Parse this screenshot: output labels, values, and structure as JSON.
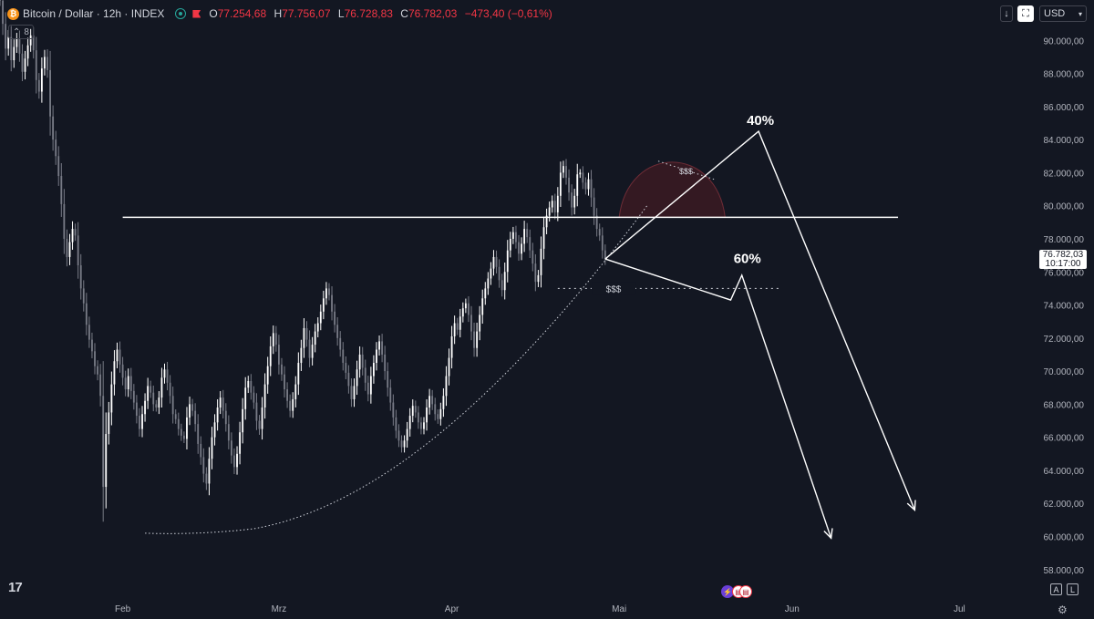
{
  "header": {
    "symbol_title": "Bitcoin / Dollar · 12h · INDEX",
    "btc_glyph": "₿",
    "ohlc": [
      {
        "k": "O",
        "v": "77.254,68"
      },
      {
        "k": "H",
        "v": "77.756,07"
      },
      {
        "k": "L",
        "v": "76.728,83"
      },
      {
        "k": "C",
        "v": "76.782,03"
      }
    ],
    "change": "−473,40 (−0,61%)",
    "volume_count": "8"
  },
  "toolbar": {
    "currency": "USD"
  },
  "price_badge": {
    "price": "76.782,03",
    "countdown": "10:17:00"
  },
  "footer": {
    "auto_label": "A",
    "log_label": "L",
    "logo_text": "17"
  },
  "colors": {
    "background": "#131722",
    "candle_up": "#ffffff",
    "candle_down": "#787b86",
    "annotation": "#ffffff",
    "dome_fill": "#3b1a22",
    "dome_stroke": "#6d2c36",
    "accent_down": "#f23645",
    "accent_up": "#26a69a"
  },
  "chart_data": {
    "type": "candlestick",
    "title": "Bitcoin / Dollar · 12h · INDEX",
    "y_axis": {
      "range": [
        56500,
        92000
      ],
      "ticks": [
        58000,
        60000,
        62000,
        64000,
        66000,
        68000,
        70000,
        72000,
        74000,
        76000,
        78000,
        80000,
        82000,
        84000,
        86000,
        88000,
        90000
      ],
      "tick_labels": [
        "58.000,00",
        "60.000,00",
        "62.000,00",
        "64.000,00",
        "66.000,00",
        "68.000,00",
        "70.000,00",
        "72.000,00",
        "74.000,00",
        "76.000,00",
        "78.000,00",
        "80.000,00",
        "82.000,00",
        "84.000,00",
        "86.000,00",
        "88.000,00",
        "90.000,00"
      ]
    },
    "x_axis": {
      "range": [
        "2025-01-10",
        "2025-07-15"
      ],
      "ticks": [
        "2025-02-01",
        "2025-03-01",
        "2025-04-01",
        "2025-05-01",
        "2025-06-01",
        "2025-07-01"
      ],
      "tick_labels": [
        "Feb",
        "Mrz",
        "Apr",
        "Mai",
        "Jun",
        "Jul"
      ]
    },
    "close_series": {
      "start": "2025-01-10",
      "interval_hours": 12,
      "values": [
        92400,
        91000,
        89500,
        90200,
        88800,
        89600,
        90100,
        89200,
        88100,
        88900,
        89700,
        90300,
        89400,
        87600,
        86900,
        88300,
        89000,
        88200,
        85400,
        84000,
        83000,
        81800,
        80100,
        78000,
        76900,
        77800,
        78600,
        78200,
        76400,
        75000,
        74100,
        72800,
        71900,
        71200,
        70300,
        69800,
        68500,
        63000,
        66200,
        67500,
        69200,
        70600,
        71300,
        70400,
        69600,
        68900,
        69700,
        68800,
        68100,
        67300,
        66500,
        67400,
        68200,
        69100,
        68700,
        68000,
        67800,
        68400,
        69600,
        70100,
        69300,
        68500,
        67400,
        67100,
        66500,
        66100,
        65900,
        67200,
        68000,
        67600,
        66800,
        65600,
        64800,
        63800,
        63200,
        64700,
        66000,
        66900,
        67800,
        68400,
        67600,
        66800,
        65800,
        64900,
        64200,
        65000,
        66300,
        67700,
        69000,
        69400,
        68700,
        68100,
        67000,
        66500,
        67800,
        69200,
        70300,
        71500,
        72300,
        71600,
        70400,
        69800,
        68900,
        68200,
        67600,
        68300,
        69200,
        70500,
        71400,
        72600,
        71900,
        70800,
        71600,
        72400,
        72900,
        73600,
        74400,
        75000,
        74600,
        73600,
        72800,
        72000,
        71300,
        70500,
        69900,
        69100,
        68300,
        69100,
        70100,
        71000,
        70200,
        69300,
        68600,
        69700,
        70500,
        71300,
        71800,
        71000,
        70000,
        69000,
        68100,
        67200,
        66400,
        65800,
        65400,
        65800,
        66500,
        67300,
        67900,
        67500,
        66900,
        66500,
        66900,
        67800,
        68500,
        68000,
        67400,
        67100,
        67700,
        68500,
        69700,
        70800,
        72100,
        72900,
        72500,
        73300,
        73800,
        74100,
        73400,
        72400,
        71400,
        72400,
        73400,
        74400,
        75000,
        75600,
        76200,
        76900,
        76300,
        75500,
        74900,
        76000,
        77300,
        78000,
        78400,
        77800,
        77100,
        77700,
        78600,
        78100,
        77300,
        76500,
        75400,
        75800,
        77400,
        78700,
        79400,
        79900,
        80300,
        79600,
        80600,
        82000,
        82400,
        81700,
        80800,
        79900,
        80600,
        81900,
        82000,
        81400,
        81000,
        81600,
        80500,
        79400,
        78600,
        78200,
        77300,
        76782
      ]
    },
    "annotations": {
      "resistance_level": 79300,
      "liquidity_level": 75000,
      "liquidity_label": "$$$",
      "dome_label": "$$$",
      "scenario_up_label": "40%",
      "scenario_down_label": "60%",
      "curve_low": 60200,
      "curve_start": "2025-02-05",
      "dome_peak": 83200
    }
  }
}
